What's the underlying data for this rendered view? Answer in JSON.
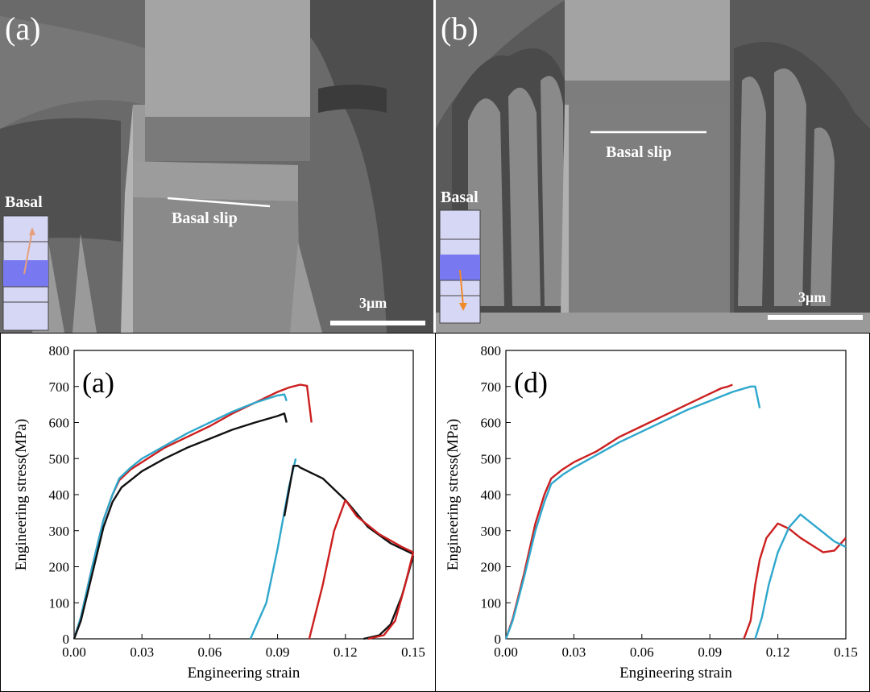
{
  "sem_panels": [
    {
      "letter": "(a)",
      "slip_label": "Basal slip",
      "basal_label": "Basal",
      "scale_bar": "3μm"
    },
    {
      "letter": "(b)",
      "slip_label": "Basal slip",
      "basal_label": "Basal",
      "scale_bar": "3μm"
    }
  ],
  "colors": {
    "red": "#cc1f1f",
    "cyan": "#2ea7cc",
    "black": "#111111",
    "crystal": "#d6d6f5",
    "crystal_band": "#7878f0",
    "arrow_a": "#e6a07a",
    "arrow_b": "#f08a28"
  },
  "chart_data": [
    {
      "type": "line",
      "panel_label": "(a)",
      "xlabel": "Engineering strain",
      "ylabel": "Engineering stress(MPa)",
      "xlim": [
        0,
        0.15
      ],
      "ylim": [
        0,
        800
      ],
      "xticks": [
        "0.00",
        "0.03",
        "0.06",
        "0.09",
        "0.12",
        "0.15"
      ],
      "yticks": [
        "0",
        "100",
        "200",
        "300",
        "400",
        "500",
        "600",
        "700",
        "800"
      ],
      "series": [
        {
          "color": "red",
          "x": [
            0,
            0.003,
            0.008,
            0.013,
            0.017,
            0.02,
            0.025,
            0.03,
            0.04,
            0.05,
            0.06,
            0.07,
            0.08,
            0.09,
            0.095,
            0.1,
            0.103,
            0.105
          ],
          "y": [
            0,
            60,
            200,
            330,
            400,
            440,
            470,
            490,
            530,
            560,
            590,
            625,
            655,
            685,
            697,
            705,
            702,
            600
          ]
        },
        {
          "color": "cyan",
          "x": [
            0,
            0.003,
            0.008,
            0.013,
            0.017,
            0.02,
            0.025,
            0.03,
            0.04,
            0.05,
            0.06,
            0.07,
            0.08,
            0.09,
            0.093,
            0.094
          ],
          "y": [
            0,
            60,
            200,
            330,
            400,
            445,
            475,
            500,
            535,
            570,
            600,
            630,
            655,
            675,
            678,
            660
          ]
        },
        {
          "color": "black",
          "x": [
            0,
            0.003,
            0.008,
            0.013,
            0.017,
            0.021,
            0.025,
            0.03,
            0.04,
            0.05,
            0.06,
            0.07,
            0.08,
            0.09,
            0.093,
            0.094
          ],
          "y": [
            0,
            50,
            180,
            310,
            380,
            420,
            440,
            465,
            500,
            530,
            555,
            580,
            600,
            618,
            625,
            600
          ]
        },
        {
          "color": "cyan",
          "x": [
            0.078,
            0.085,
            0.09,
            0.095,
            0.098
          ],
          "y": [
            0,
            100,
            250,
            420,
            500
          ]
        },
        {
          "color": "black",
          "x": [
            0.093,
            0.097,
            0.099,
            0.1,
            0.11,
            0.12,
            0.13,
            0.14,
            0.15
          ],
          "y": [
            340,
            480,
            480,
            475,
            445,
            385,
            310,
            265,
            235
          ]
        },
        {
          "color": "red",
          "x": [
            0.104,
            0.11,
            0.115,
            0.12
          ],
          "y": [
            0,
            150,
            300,
            385
          ]
        },
        {
          "color": "red",
          "x": [
            0.12,
            0.125,
            0.135,
            0.145,
            0.15
          ],
          "y": [
            385,
            340,
            290,
            255,
            240
          ]
        },
        {
          "color": "black",
          "x": [
            0.128,
            0.135,
            0.14,
            0.145,
            0.15
          ],
          "y": [
            0,
            10,
            40,
            120,
            230
          ]
        },
        {
          "color": "red",
          "x": [
            0.13,
            0.137,
            0.142,
            0.146,
            0.15
          ],
          "y": [
            0,
            10,
            50,
            140,
            240
          ]
        }
      ]
    },
    {
      "type": "line",
      "panel_label": "(d)",
      "xlabel": "Engineering strain",
      "ylabel": "Engineering stress(MPa)",
      "xlim": [
        0,
        0.15
      ],
      "ylim": [
        0,
        800
      ],
      "xticks": [
        "0.00",
        "0.03",
        "0.06",
        "0.09",
        "0.12",
        "0.15"
      ],
      "yticks": [
        "0",
        "100",
        "200",
        "300",
        "400",
        "500",
        "600",
        "700",
        "800"
      ],
      "series": [
        {
          "color": "red",
          "x": [
            0,
            0.003,
            0.008,
            0.013,
            0.017,
            0.02,
            0.025,
            0.03,
            0.04,
            0.05,
            0.06,
            0.07,
            0.08,
            0.09,
            0.095,
            0.098,
            0.1
          ],
          "y": [
            0,
            55,
            180,
            320,
            400,
            445,
            470,
            490,
            520,
            560,
            590,
            620,
            650,
            680,
            695,
            700,
            705
          ]
        },
        {
          "color": "cyan",
          "x": [
            0,
            0.003,
            0.008,
            0.013,
            0.017,
            0.02,
            0.025,
            0.03,
            0.04,
            0.05,
            0.06,
            0.07,
            0.08,
            0.09,
            0.1,
            0.108,
            0.11,
            0.112
          ],
          "y": [
            0,
            50,
            170,
            300,
            380,
            430,
            455,
            475,
            510,
            545,
            575,
            605,
            635,
            660,
            685,
            700,
            700,
            640
          ]
        },
        {
          "color": "red",
          "x": [
            0.105,
            0.108,
            0.11,
            0.112,
            0.115,
            0.12,
            0.125,
            0.13,
            0.14,
            0.145,
            0.15
          ],
          "y": [
            0,
            50,
            150,
            220,
            280,
            320,
            305,
            280,
            240,
            245,
            280
          ]
        },
        {
          "color": "cyan",
          "x": [
            0.11,
            0.113,
            0.116,
            0.12,
            0.125,
            0.13,
            0.135,
            0.14,
            0.145,
            0.15
          ],
          "y": [
            0,
            60,
            150,
            240,
            310,
            345,
            320,
            295,
            270,
            255
          ]
        }
      ]
    }
  ]
}
